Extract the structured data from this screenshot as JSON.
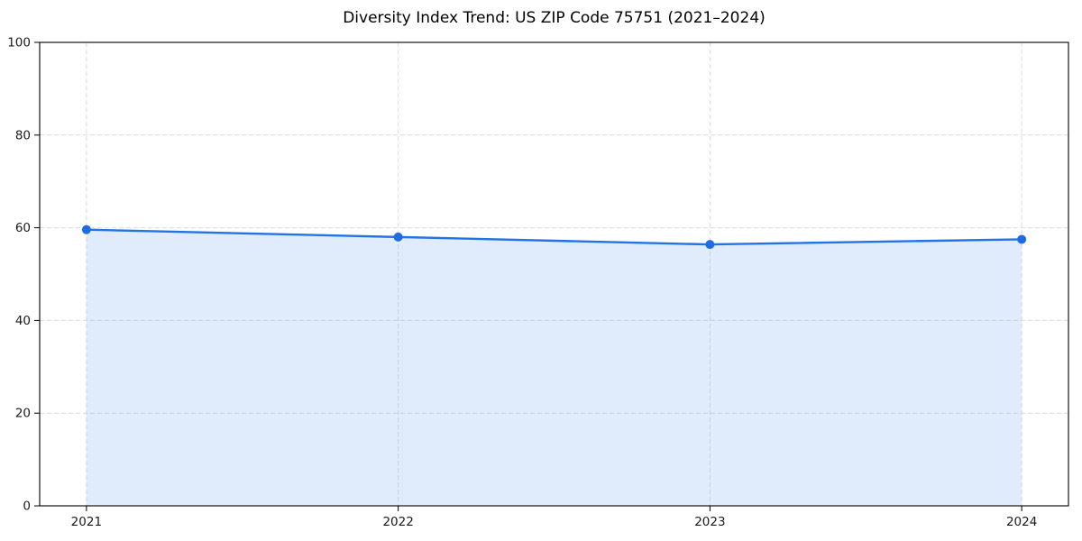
{
  "chart_data": {
    "type": "area",
    "title": "Diversity Index Trend: US ZIP Code 75751 (2021–2024)",
    "categories": [
      "2021",
      "2022",
      "2023",
      "2024"
    ],
    "x": [
      2021,
      2022,
      2023,
      2024
    ],
    "series": [
      {
        "name": "Diversity Index",
        "values": [
          59.6,
          58.0,
          56.4,
          57.5
        ]
      }
    ],
    "xlabel": "",
    "ylabel": "",
    "ylim": [
      0,
      100
    ],
    "yticks": [
      0,
      20,
      40,
      60,
      80,
      100
    ],
    "x_margin_frac": 0.05,
    "grid": true,
    "grid_style": "dashed",
    "legend": "none",
    "colors": {
      "line": "#2273e6",
      "marker": "#1e6ce2",
      "fill": "#2273e6",
      "fill_opacity": "0.14",
      "grid": "#dcdcdc",
      "spine": "#000000",
      "tick_text": "#1a1a1a",
      "title_text": "#000000",
      "background": "#ffffff"
    }
  }
}
